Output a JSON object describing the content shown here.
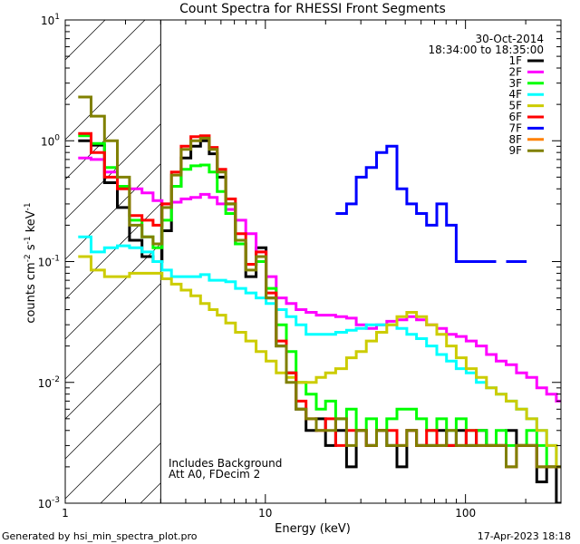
{
  "chart_data": {
    "type": "line",
    "title": "Count Spectra for RHESSI Front Segments",
    "xlabel": "Energy (keV)",
    "ylabel": "counts cm-2 s-1 keV-1",
    "xscale": "log",
    "yscale": "log",
    "xlim": [
      1.0,
      300.0
    ],
    "ylim": [
      0.001,
      10.0
    ],
    "x_ticks": [
      {
        "value": 1,
        "label": "1"
      },
      {
        "value": 10,
        "label": "10"
      },
      {
        "value": 100,
        "label": "100"
      }
    ],
    "y_ticks": [
      {
        "value": 0.001,
        "label": "10-3",
        "base": "10",
        "exp": "-3"
      },
      {
        "value": 0.01,
        "label": "10-2",
        "base": "10",
        "exp": "-2"
      },
      {
        "value": 0.1,
        "label": "10-1",
        "base": "10",
        "exp": "-1"
      },
      {
        "value": 1,
        "label": "100",
        "base": "10",
        "exp": "0"
      },
      {
        "value": 10,
        "label": "101",
        "base": "10",
        "exp": "1"
      }
    ],
    "shaded_region": {
      "x_min": 1.0,
      "x_max": 3.0
    },
    "date": "30-Oct-2014",
    "time_range": "18:34:00 to 18:35:00",
    "annotations": [
      "Includes Background",
      "Att A0, FDecim 2"
    ],
    "series": [
      {
        "name": "1F",
        "color": "#000000",
        "x": [
          1.25,
          1.45,
          1.7,
          1.95,
          2.25,
          2.6,
          2.9,
          3.2,
          3.6,
          4.0,
          4.5,
          5.0,
          5.5,
          6.0,
          6.7,
          7.5,
          8.5,
          9.5,
          10.7,
          12,
          13.5,
          15,
          17,
          19,
          21,
          24,
          27,
          30,
          34,
          38,
          43,
          48,
          54,
          60,
          68,
          76,
          85,
          95,
          107,
          120,
          135,
          150,
          170,
          190,
          215,
          240,
          270,
          300
        ],
        "y": [
          1.0,
          0.92,
          0.45,
          0.28,
          0.15,
          0.11,
          0.1,
          0.18,
          0.42,
          0.72,
          0.9,
          1.0,
          0.78,
          0.5,
          0.3,
          0.14,
          0.075,
          0.13,
          0.05,
          0.02,
          0.012,
          0.006,
          0.004,
          0.005,
          0.003,
          0.004,
          0.002,
          0.004,
          0.003,
          0.004,
          0.003,
          0.002,
          0.004,
          0.003,
          0.003,
          0.004,
          0.003,
          0.004,
          0.003,
          0.004,
          0.003,
          0.003,
          0.004,
          0.003,
          0.003,
          0.0015,
          0.002,
          0.001
        ]
      },
      {
        "name": "2F",
        "color": "#ff00ff",
        "x": [
          1.25,
          1.45,
          1.7,
          1.95,
          2.25,
          2.6,
          2.9,
          3.2,
          3.6,
          4.0,
          4.5,
          5.0,
          5.5,
          6.0,
          6.7,
          7.5,
          8.5,
          9.5,
          10.7,
          12,
          13.5,
          15,
          17,
          19,
          21,
          24,
          27,
          30,
          34,
          38,
          43,
          48,
          54,
          60,
          68,
          76,
          85,
          95,
          107,
          120,
          135,
          150,
          170,
          190,
          215,
          240,
          270,
          300
        ],
        "y": [
          0.72,
          0.7,
          0.55,
          0.42,
          0.4,
          0.37,
          0.32,
          0.3,
          0.31,
          0.33,
          0.34,
          0.36,
          0.34,
          0.3,
          0.27,
          0.22,
          0.17,
          0.12,
          0.075,
          0.05,
          0.045,
          0.04,
          0.038,
          0.036,
          0.036,
          0.035,
          0.034,
          0.03,
          0.028,
          0.03,
          0.032,
          0.033,
          0.035,
          0.033,
          0.03,
          0.028,
          0.025,
          0.024,
          0.022,
          0.02,
          0.017,
          0.015,
          0.014,
          0.012,
          0.011,
          0.009,
          0.008,
          0.007
        ]
      },
      {
        "name": "3F",
        "color": "#00ff00",
        "x": [
          1.25,
          1.45,
          1.7,
          1.95,
          2.25,
          2.6,
          2.9,
          3.2,
          3.6,
          4.0,
          4.5,
          5.0,
          5.5,
          6.0,
          6.7,
          7.5,
          8.5,
          9.5,
          10.7,
          12,
          13.5,
          15,
          17,
          19,
          21,
          24,
          27,
          30,
          34,
          38,
          43,
          48,
          54,
          60,
          68,
          76,
          85,
          95,
          107,
          120,
          135,
          150,
          170,
          190,
          215,
          240,
          270,
          300
        ],
        "y": [
          1.1,
          0.95,
          0.6,
          0.42,
          0.22,
          0.16,
          0.13,
          0.22,
          0.42,
          0.58,
          0.62,
          0.63,
          0.55,
          0.38,
          0.25,
          0.14,
          0.095,
          0.1,
          0.06,
          0.03,
          0.018,
          0.01,
          0.008,
          0.006,
          0.007,
          0.005,
          0.006,
          0.004,
          0.005,
          0.004,
          0.005,
          0.006,
          0.006,
          0.005,
          0.004,
          0.005,
          0.004,
          0.005,
          0.004,
          0.004,
          0.003,
          0.004,
          0.003,
          0.003,
          0.004,
          0.003,
          0.002,
          0.002
        ]
      },
      {
        "name": "4F",
        "color": "#00ffff",
        "x": [
          1.25,
          1.45,
          1.7,
          1.95,
          2.25,
          2.6,
          2.9,
          3.2,
          3.6,
          4.0,
          4.5,
          5.0,
          5.5,
          6.0,
          6.7,
          7.5,
          8.5,
          9.5,
          10.7,
          12,
          13.5,
          15,
          17,
          19,
          21,
          24,
          27,
          30,
          34,
          38,
          43,
          48,
          54,
          60,
          68,
          76,
          85,
          95,
          107,
          120,
          135,
          150,
          170,
          190,
          215,
          240,
          270,
          300
        ],
        "y": [
          0.16,
          0.12,
          0.13,
          0.135,
          0.13,
          0.12,
          0.1,
          0.085,
          0.075,
          0.075,
          0.075,
          0.078,
          0.07,
          0.07,
          0.068,
          0.06,
          0.055,
          0.05,
          0.045,
          0.04,
          0.035,
          0.03,
          0.025,
          0.025,
          0.025,
          0.026,
          0.027,
          0.028,
          0.03,
          0.03,
          0.03,
          0.028,
          0.025,
          0.023,
          0.02,
          0.017,
          0.015,
          0.013,
          0.012,
          0.01,
          0.009,
          0.008,
          0.007,
          0.006,
          0.005,
          0.004,
          0.003,
          0.002
        ]
      },
      {
        "name": "5F",
        "color": "#cccc00",
        "x": [
          1.25,
          1.45,
          1.7,
          1.95,
          2.25,
          2.6,
          2.9,
          3.2,
          3.6,
          4.0,
          4.5,
          5.0,
          5.5,
          6.0,
          6.7,
          7.5,
          8.5,
          9.5,
          10.7,
          12,
          13.5,
          15,
          17,
          19,
          21,
          24,
          27,
          30,
          34,
          38,
          43,
          48,
          54,
          60,
          68,
          76,
          85,
          95,
          107,
          120,
          135,
          150,
          170,
          190,
          215,
          240,
          270,
          300
        ],
        "y": [
          0.11,
          0.085,
          0.075,
          0.075,
          0.08,
          0.08,
          0.08,
          0.072,
          0.065,
          0.058,
          0.052,
          0.045,
          0.04,
          0.036,
          0.031,
          0.026,
          0.022,
          0.018,
          0.015,
          0.012,
          0.011,
          0.01,
          0.01,
          0.011,
          0.012,
          0.013,
          0.016,
          0.018,
          0.022,
          0.026,
          0.03,
          0.035,
          0.038,
          0.035,
          0.03,
          0.025,
          0.02,
          0.016,
          0.013,
          0.011,
          0.009,
          0.008,
          0.007,
          0.006,
          0.005,
          0.004,
          0.003,
          0.002
        ]
      },
      {
        "name": "6F",
        "color": "#ff0000",
        "x": [
          1.25,
          1.45,
          1.7,
          1.95,
          2.25,
          2.6,
          2.9,
          3.2,
          3.6,
          4.0,
          4.5,
          5.0,
          5.5,
          6.0,
          6.7,
          7.5,
          8.5,
          9.5,
          10.7,
          12,
          13.5,
          15,
          17,
          19,
          21,
          24,
          27,
          30,
          34,
          38,
          43,
          48,
          54,
          60,
          68,
          76,
          85,
          95,
          107,
          120,
          135,
          150,
          170,
          190,
          215,
          240,
          270,
          300
        ],
        "y": [
          1.15,
          0.8,
          0.5,
          0.4,
          0.24,
          0.22,
          0.2,
          0.3,
          0.55,
          0.9,
          1.08,
          1.1,
          0.88,
          0.58,
          0.33,
          0.17,
          0.095,
          0.12,
          0.055,
          0.022,
          0.012,
          0.007,
          0.005,
          0.004,
          0.005,
          0.003,
          0.004,
          0.004,
          0.003,
          0.004,
          0.004,
          0.003,
          0.004,
          0.003,
          0.004,
          0.003,
          0.003,
          0.003,
          0.004,
          0.003,
          0.003,
          0.003,
          0.002,
          0.003,
          0.003,
          0.002,
          0.002,
          0.002
        ]
      },
      {
        "name": "7F",
        "color": "#0000ff",
        "x": [
          1.25,
          1.45,
          1.7,
          1.95,
          2.25,
          2.6,
          2.9,
          3.2,
          3.6,
          4.0,
          4.5,
          5.0,
          5.5,
          6.0,
          6.7,
          7.5,
          8.5,
          9.5,
          10.7,
          12,
          13.5,
          15,
          17,
          19,
          21,
          24,
          27,
          30,
          34,
          38,
          43,
          48,
          54,
          60,
          68,
          76,
          85,
          95,
          107,
          120,
          135,
          150,
          170,
          190,
          215,
          240,
          270,
          300
        ],
        "y": [
          null,
          null,
          null,
          null,
          null,
          null,
          null,
          null,
          null,
          null,
          null,
          null,
          null,
          null,
          null,
          null,
          null,
          null,
          null,
          null,
          null,
          null,
          null,
          null,
          null,
          0.25,
          0.3,
          0.5,
          0.6,
          0.8,
          0.9,
          0.4,
          0.3,
          0.25,
          0.2,
          0.3,
          0.2,
          0.1,
          0.1,
          0.1,
          0.1,
          null,
          0.1,
          0.1,
          null,
          null,
          null,
          null
        ]
      },
      {
        "name": "8F",
        "color": "#ff8000",
        "x": [
          1.25,
          1.45,
          1.7,
          1.95,
          2.25,
          2.6,
          2.9,
          3.2,
          3.6,
          4.0,
          4.5,
          5.0,
          5.5,
          6.0,
          6.7,
          7.5,
          8.5,
          9.5,
          10.7,
          12,
          13.5,
          15,
          17,
          19,
          21,
          24,
          27,
          30,
          34,
          38,
          43,
          48,
          54,
          60,
          68,
          76,
          85,
          95,
          107,
          120,
          135,
          150,
          170,
          190,
          215,
          240,
          270,
          300
        ],
        "y": [
          null,
          null,
          null,
          null,
          null,
          null,
          null,
          null,
          null,
          null,
          null,
          null,
          null,
          null,
          null,
          null,
          null,
          null,
          null,
          null,
          null,
          null,
          null,
          null,
          null,
          null,
          null,
          null,
          null,
          null,
          null,
          null,
          null,
          null,
          null,
          null,
          null,
          null,
          null,
          null,
          null,
          null,
          null,
          null,
          null,
          null,
          null,
          null
        ]
      },
      {
        "name": "9F",
        "color": "#808000",
        "x": [
          1.25,
          1.45,
          1.7,
          1.95,
          2.25,
          2.6,
          2.9,
          3.2,
          3.6,
          4.0,
          4.5,
          5.0,
          5.5,
          6.0,
          6.7,
          7.5,
          8.5,
          9.5,
          10.7,
          12,
          13.5,
          15,
          17,
          19,
          21,
          24,
          27,
          30,
          34,
          38,
          43,
          48,
          54,
          60,
          68,
          76,
          85,
          95,
          107,
          120,
          135,
          150,
          170,
          190,
          215,
          240,
          270,
          300
        ],
        "y": [
          2.3,
          1.6,
          1.0,
          0.5,
          0.2,
          0.16,
          0.14,
          0.28,
          0.52,
          0.85,
          1.0,
          1.05,
          0.85,
          0.55,
          0.3,
          0.15,
          0.085,
          0.11,
          0.05,
          0.02,
          0.01,
          0.006,
          0.005,
          0.004,
          0.004,
          0.005,
          0.003,
          0.004,
          0.003,
          0.004,
          0.003,
          0.003,
          0.004,
          0.003,
          0.003,
          0.003,
          0.004,
          0.003,
          0.003,
          0.003,
          0.003,
          0.003,
          0.002,
          0.003,
          0.003,
          0.002,
          0.002,
          0.002
        ]
      }
    ]
  },
  "footer": {
    "generated_by": "Generated by hsi_min_spectra_plot.pro",
    "date": "17-Apr-2023 18:18"
  }
}
